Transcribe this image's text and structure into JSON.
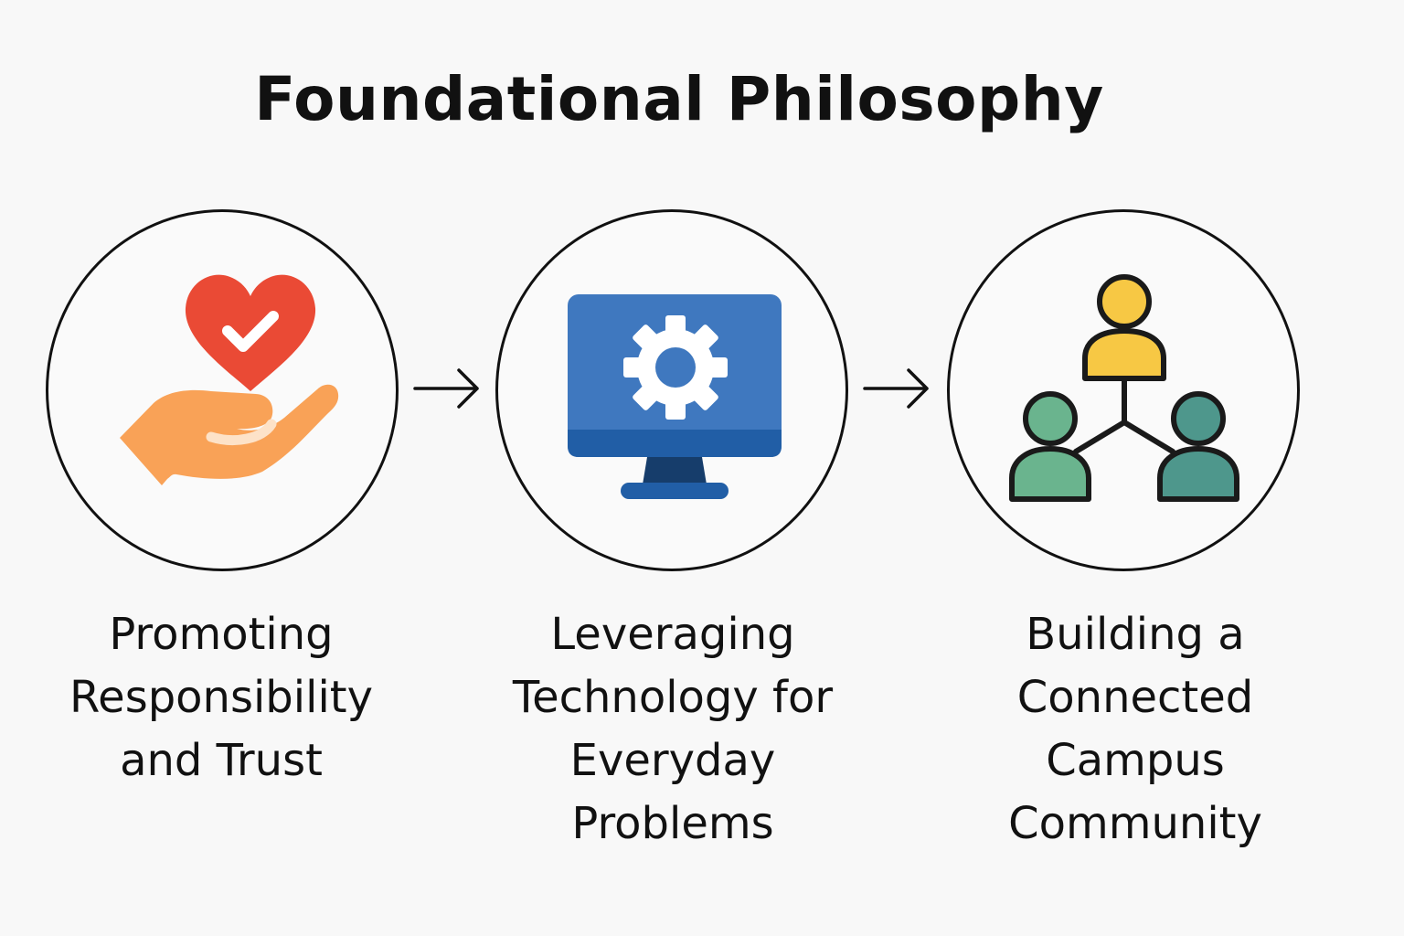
{
  "title": "Foundational Philosophy",
  "steps": [
    {
      "label": "Promoting\nResponsibility\nand Trust",
      "icon": "hand-heart-check-icon",
      "colors": {
        "heart": "#ea4a35",
        "hand": "#f9a257",
        "check": "#ffffff"
      }
    },
    {
      "label": "Leveraging\nTechnology for\nEveryday\nProblems",
      "icon": "monitor-gear-icon",
      "colors": {
        "screen": "#3f78bf",
        "bezel": "#215ea6",
        "stand": "#163d6b",
        "gear": "#ffffff"
      }
    },
    {
      "label": "Building a\nConnected\nCampus\nCommunity",
      "icon": "connected-people-icon",
      "colors": {
        "top_person": "#f7c844",
        "left_person": "#6ab48e",
        "right_person": "#4e978c",
        "outline": "#1a1a1a"
      }
    }
  ],
  "arrow_icon": "arrow-right-icon"
}
